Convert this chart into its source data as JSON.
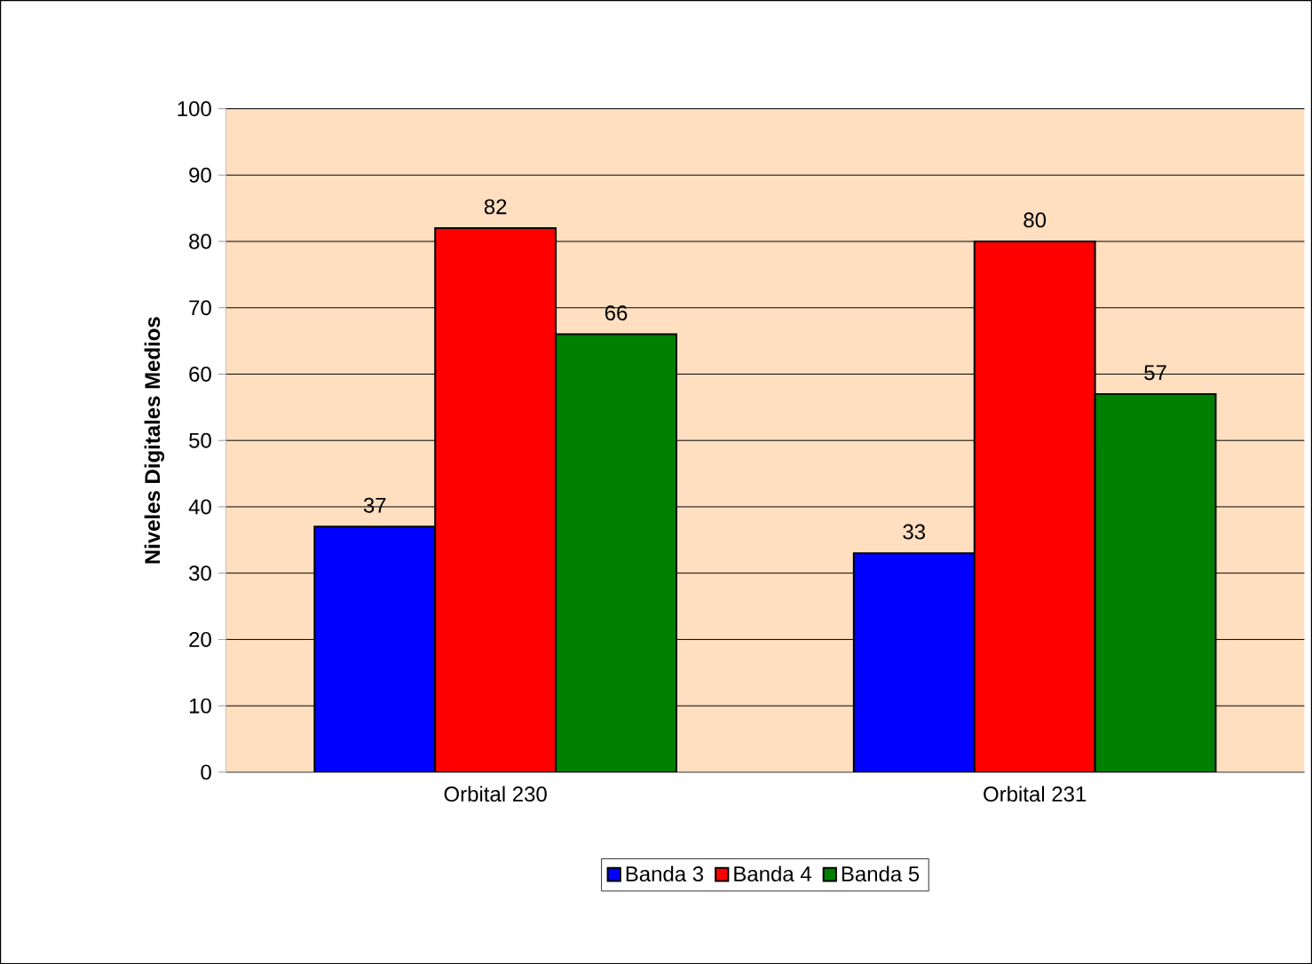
{
  "chart_data": {
    "type": "bar",
    "ylabel": "Niveles Digitales Medios",
    "categories": [
      "Orbital 230",
      "Orbital 231"
    ],
    "series": [
      {
        "name": "Banda 3",
        "color": "#0000ff",
        "values": [
          37,
          33
        ]
      },
      {
        "name": "Banda 4",
        "color": "#ff0000",
        "values": [
          82,
          80
        ]
      },
      {
        "name": "Banda 5",
        "color": "#008000",
        "values": [
          66,
          57
        ]
      }
    ],
    "ylim": [
      0,
      100
    ],
    "yticks": [
      0,
      10,
      20,
      30,
      40,
      50,
      60,
      70,
      80,
      90,
      100
    ],
    "grid": "y",
    "legend": "bottom",
    "data_labels": true
  }
}
